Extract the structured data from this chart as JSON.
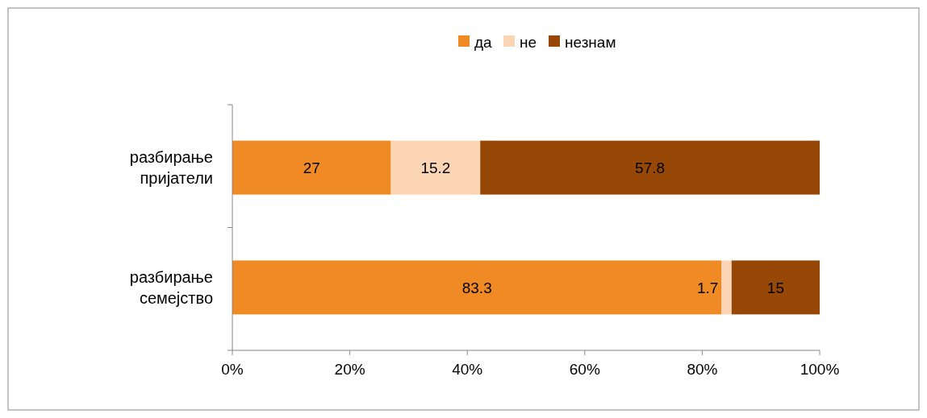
{
  "chart_data": {
    "type": "bar",
    "orientation": "horizontal",
    "stacked": true,
    "categories": [
      "разбирање пријатели",
      "разбирање семејство"
    ],
    "series": [
      {
        "name": "да",
        "color": "#f08a24",
        "values": [
          27,
          83.3
        ]
      },
      {
        "name": "не",
        "color": "#fcd5b4",
        "values": [
          15.2,
          1.7
        ]
      },
      {
        "name": "незнам",
        "color": "#974706",
        "values": [
          57.8,
          15
        ]
      }
    ],
    "xlim": [
      0,
      100
    ],
    "xticks": [
      {
        "value": 0,
        "label": "0%"
      },
      {
        "value": 20,
        "label": "20%"
      },
      {
        "value": 40,
        "label": "40%"
      },
      {
        "value": 60,
        "label": "60%"
      },
      {
        "value": 80,
        "label": "80%"
      },
      {
        "value": 100,
        "label": "100%"
      }
    ],
    "data_labels": true,
    "legend": "top",
    "grid": false
  }
}
